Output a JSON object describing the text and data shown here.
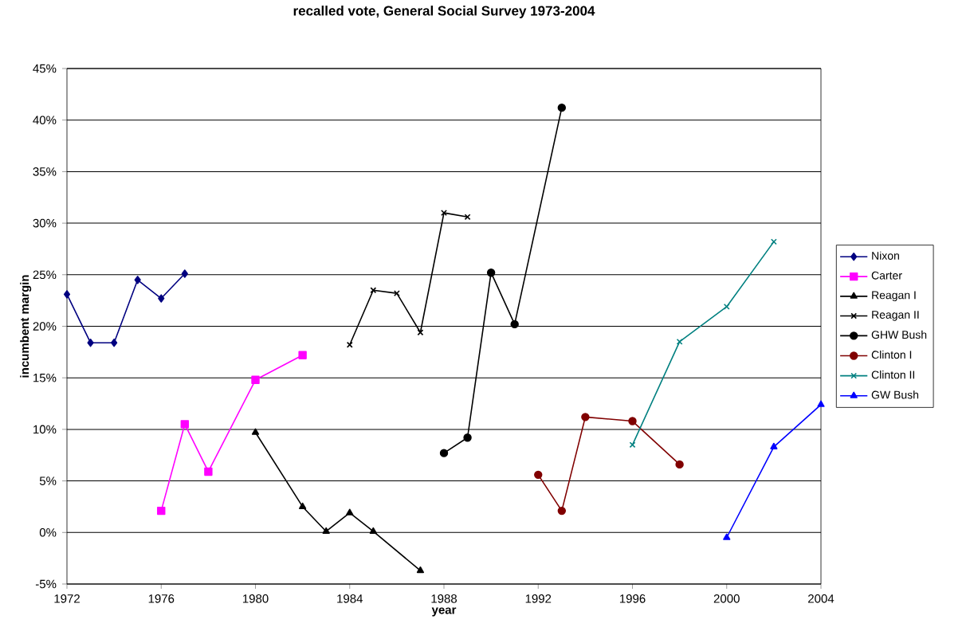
{
  "chart_data": {
    "type": "line",
    "title": "recalled vote, General Social Survey 1973-2004",
    "xlabel": "year",
    "ylabel": "incumbent margin",
    "xlim": [
      1972,
      2004
    ],
    "xticks": [
      1972,
      1976,
      1980,
      1984,
      1988,
      1992,
      1996,
      2000,
      2004
    ],
    "ylim": [
      -5,
      45
    ],
    "yticks": [
      {
        "value": -5,
        "label": "-5%"
      },
      {
        "value": 0,
        "label": "0%"
      },
      {
        "value": 5,
        "label": "5%"
      },
      {
        "value": 10,
        "label": "10%"
      },
      {
        "value": 15,
        "label": "15%"
      },
      {
        "value": 20,
        "label": "20%"
      },
      {
        "value": 25,
        "label": "25%"
      },
      {
        "value": 30,
        "label": "30%"
      },
      {
        "value": 35,
        "label": "35%"
      },
      {
        "value": 40,
        "label": "40%"
      },
      {
        "value": 45,
        "label": "45%"
      }
    ],
    "grid": "y",
    "legend": "right",
    "line_style": "solid",
    "series": [
      {
        "name": "Nixon",
        "color": "#000080",
        "marker": "diamond",
        "x": [
          1972,
          1973,
          1974,
          1975,
          1976,
          1977
        ],
        "values": [
          23.1,
          18.4,
          18.4,
          24.5,
          22.7,
          25.1
        ]
      },
      {
        "name": "Carter",
        "color": "#ff00ff",
        "marker": "square",
        "x": [
          1976,
          1977,
          1978,
          1980,
          1982
        ],
        "values": [
          2.1,
          10.5,
          5.9,
          14.8,
          17.2
        ]
      },
      {
        "name": "Reagan I",
        "color": "#000000",
        "marker": "triangle",
        "x": [
          1980,
          1982,
          1983,
          1984,
          1985,
          1987
        ],
        "values": [
          9.7,
          2.5,
          0.1,
          1.9,
          0.1,
          -3.7
        ]
      },
      {
        "name": "Reagan II",
        "color": "#000000",
        "marker": "cross",
        "x": [
          1984,
          1985,
          1986,
          1987,
          1988,
          1989
        ],
        "values": [
          18.2,
          23.5,
          23.2,
          19.4,
          31.0,
          30.6
        ]
      },
      {
        "name": "GHW Bush",
        "color": "#000000",
        "marker": "circle",
        "x": [
          1988,
          1989,
          1990,
          1991,
          1993
        ],
        "values": [
          7.7,
          9.2,
          25.2,
          20.2,
          41.2
        ]
      },
      {
        "name": "Clinton I",
        "color": "#800000",
        "marker": "circle",
        "x": [
          1992,
          1993,
          1994,
          1996,
          1998
        ],
        "values": [
          5.6,
          2.1,
          11.2,
          10.8,
          6.6
        ]
      },
      {
        "name": "Clinton II",
        "color": "#008080",
        "marker": "cross",
        "x": [
          1996,
          1998,
          2000,
          2002
        ],
        "values": [
          8.5,
          18.5,
          21.9,
          28.2
        ]
      },
      {
        "name": "GW Bush",
        "color": "#0000ff",
        "marker": "triangle",
        "x": [
          2000,
          2002,
          2004
        ],
        "values": [
          -0.5,
          8.3,
          12.4
        ]
      }
    ]
  }
}
